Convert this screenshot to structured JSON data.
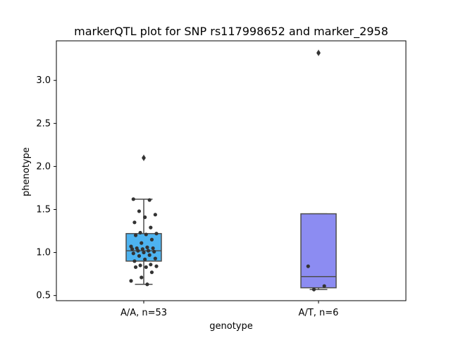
{
  "chart_data": {
    "type": "box",
    "title": "markerQTL plot for SNP rs117998652 and marker_2958",
    "xlabel": "genotype",
    "ylabel": "phenotype",
    "ylim": [
      0.44,
      3.46
    ],
    "yticks": [
      "0.5",
      "1.0",
      "1.5",
      "2.0",
      "2.5",
      "3.0"
    ],
    "categories": [
      "A/A, n=53",
      "A/T, n=6"
    ],
    "boxes": [
      {
        "name": "A/A, n=53",
        "color": "#4db3f0",
        "whisker_low": 0.63,
        "q1": 0.9,
        "median": 1.02,
        "q3": 1.22,
        "whisker_high": 1.62,
        "outliers": [
          2.1
        ],
        "points": [
          2.1,
          1.62,
          1.61,
          1.48,
          1.44,
          1.41,
          1.35,
          1.29,
          1.23,
          1.22,
          1.21,
          1.2,
          1.15,
          1.11,
          1.07,
          1.06,
          1.05,
          1.05,
          1.04,
          1.04,
          1.02,
          1.02,
          1.01,
          1.0,
          0.99,
          0.97,
          0.96,
          0.93,
          0.92,
          0.9,
          0.86,
          0.85,
          0.84,
          0.83,
          0.83,
          0.77,
          0.71,
          0.67,
          0.63
        ]
      },
      {
        "name": "A/T, n=6",
        "color": "#8c8cf2",
        "whisker_low": 0.57,
        "q1": 0.59,
        "median": 0.72,
        "q3": 1.45,
        "whisker_high": 1.45,
        "outliers": [
          3.32
        ],
        "points": [
          3.32,
          0.84,
          0.61,
          0.57
        ]
      }
    ]
  }
}
